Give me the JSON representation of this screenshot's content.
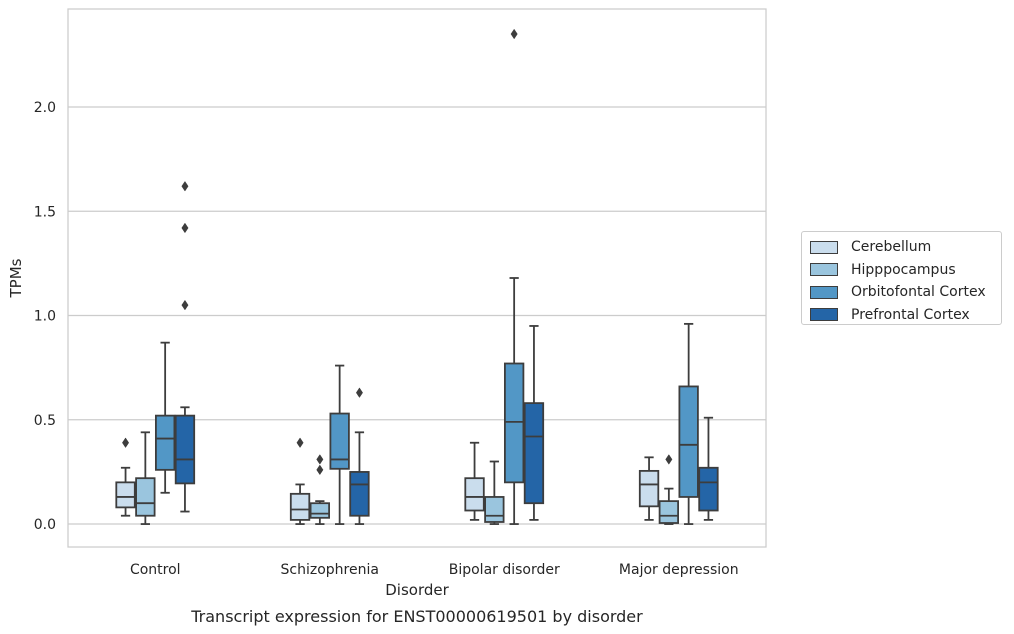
{
  "chart_data": {
    "type": "box",
    "title": "",
    "caption": "Transcript expression for ENST00000619501 by disorder",
    "xlabel": "Disorder",
    "ylabel": "TPMs",
    "ylim": [
      -0.11,
      2.47
    ],
    "yticks": [
      "0.0",
      "0.5",
      "1.0",
      "1.5",
      "2.0"
    ],
    "ytick_values": [
      0.0,
      0.5,
      1.0,
      1.5,
      2.0
    ],
    "grid": "horizontal",
    "legend_position": "right",
    "categories": [
      "Control",
      "Schizophrenia",
      "Bipolar disorder",
      "Major depression"
    ],
    "series": [
      {
        "name": "Cerebellum",
        "color": "#cadded",
        "boxes": [
          {
            "min": 0.04,
            "q1": 0.08,
            "median": 0.13,
            "q3": 0.2,
            "max": 0.27,
            "outliers": [
              0.39
            ]
          },
          {
            "min": 0.0,
            "q1": 0.02,
            "median": 0.07,
            "q3": 0.145,
            "max": 0.19,
            "outliers": [
              0.39
            ]
          },
          {
            "min": 0.02,
            "q1": 0.065,
            "median": 0.13,
            "q3": 0.22,
            "max": 0.39,
            "outliers": []
          },
          {
            "min": 0.02,
            "q1": 0.085,
            "median": 0.19,
            "q3": 0.255,
            "max": 0.32,
            "outliers": []
          }
        ]
      },
      {
        "name": "Hipppocampus",
        "color": "#9ac5de",
        "boxes": [
          {
            "min": 0.0,
            "q1": 0.04,
            "median": 0.1,
            "q3": 0.22,
            "max": 0.44,
            "outliers": []
          },
          {
            "min": 0.0,
            "q1": 0.03,
            "median": 0.05,
            "q3": 0.1,
            "max": 0.11,
            "outliers": [
              0.26,
              0.31
            ]
          },
          {
            "min": 0.0,
            "q1": 0.01,
            "median": 0.04,
            "q3": 0.13,
            "max": 0.3,
            "outliers": []
          },
          {
            "min": 0.0,
            "q1": 0.005,
            "median": 0.04,
            "q3": 0.11,
            "max": 0.17,
            "outliers": [
              0.31
            ]
          }
        ]
      },
      {
        "name": "Orbitofontal Cortex",
        "color": "#5297c6",
        "boxes": [
          {
            "min": 0.15,
            "q1": 0.26,
            "median": 0.41,
            "q3": 0.52,
            "max": 0.87,
            "outliers": []
          },
          {
            "min": 0.0,
            "q1": 0.265,
            "median": 0.31,
            "q3": 0.53,
            "max": 0.76,
            "outliers": []
          },
          {
            "min": 0.0,
            "q1": 0.2,
            "median": 0.49,
            "q3": 0.77,
            "max": 1.18,
            "outliers": [
              2.35
            ]
          },
          {
            "min": 0.0,
            "q1": 0.13,
            "median": 0.38,
            "q3": 0.66,
            "max": 0.96,
            "outliers": []
          }
        ]
      },
      {
        "name": "Prefrontal Cortex",
        "color": "#2465a7",
        "boxes": [
          {
            "min": 0.06,
            "q1": 0.195,
            "median": 0.31,
            "q3": 0.52,
            "max": 0.56,
            "outliers": [
              1.05,
              1.42,
              1.62
            ]
          },
          {
            "min": 0.0,
            "q1": 0.04,
            "median": 0.19,
            "q3": 0.25,
            "max": 0.44,
            "outliers": [
              0.63
            ]
          },
          {
            "min": 0.02,
            "q1": 0.1,
            "median": 0.42,
            "q3": 0.58,
            "max": 0.95,
            "outliers": []
          },
          {
            "min": 0.02,
            "q1": 0.065,
            "median": 0.2,
            "q3": 0.27,
            "max": 0.51,
            "outliers": []
          }
        ]
      }
    ]
  }
}
